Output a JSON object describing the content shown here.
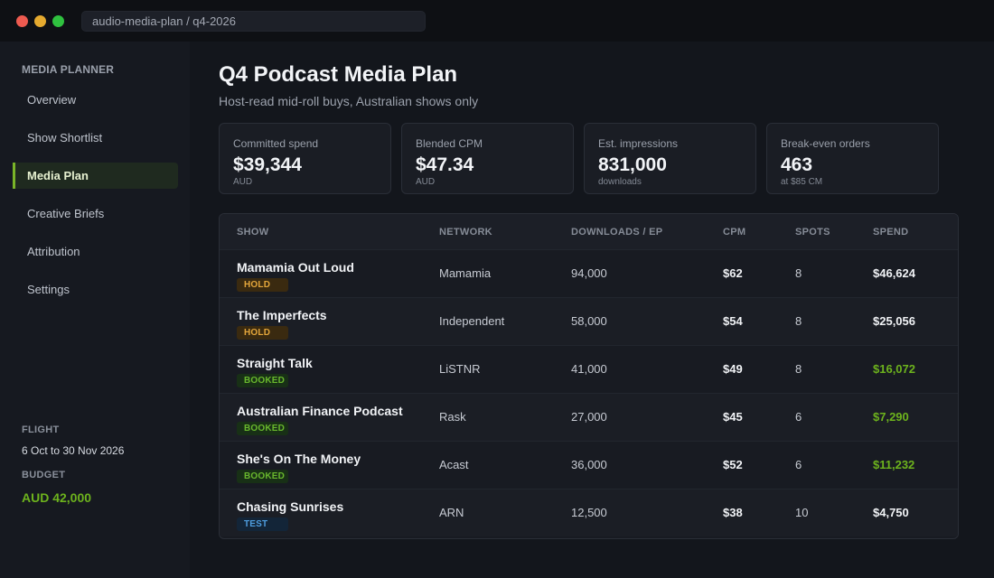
{
  "window": {
    "address": "audio-media-plan / q4-2026"
  },
  "sidebar": {
    "brand": "MEDIA PLANNER",
    "items": [
      {
        "label": "Overview",
        "active": false
      },
      {
        "label": "Show Shortlist",
        "active": false
      },
      {
        "label": "Media Plan",
        "active": true
      },
      {
        "label": "Creative Briefs",
        "active": false
      },
      {
        "label": "Attribution",
        "active": false
      },
      {
        "label": "Settings",
        "active": false
      }
    ],
    "flight_label": "FLIGHT",
    "flight_value": "6 Oct to 30 Nov 2026",
    "budget_label": "BUDGET",
    "budget_value": "AUD 42,000"
  },
  "header": {
    "title": "Q4 Podcast Media Plan",
    "subtitle": "Host-read mid-roll buys, Australian shows only"
  },
  "kpis": [
    {
      "label": "Committed spend",
      "value": "$39,344",
      "note": "AUD"
    },
    {
      "label": "Blended CPM",
      "value": "$47.34",
      "note": "AUD"
    },
    {
      "label": "Est. impressions",
      "value": "831,000",
      "note": "downloads"
    },
    {
      "label": "Break-even orders",
      "value": "463",
      "note": "at $85 CM"
    }
  ],
  "table": {
    "columns": [
      "SHOW",
      "NETWORK",
      "DOWNLOADS / EP",
      "CPM",
      "SPOTS",
      "SPEND"
    ],
    "rows": [
      {
        "show": "Mamamia Out Loud",
        "status": "HOLD",
        "status_type": "hold",
        "network": "Mamamia",
        "downloads": "94,000",
        "cpm": "$62",
        "spots": "8",
        "spend": "$46,624",
        "spend_booked": false
      },
      {
        "show": "The Imperfects",
        "status": "HOLD",
        "status_type": "hold",
        "network": "Independent",
        "downloads": "58,000",
        "cpm": "$54",
        "spots": "8",
        "spend": "$25,056",
        "spend_booked": false
      },
      {
        "show": "Straight Talk",
        "status": "BOOKED",
        "status_type": "booked",
        "network": "LiSTNR",
        "downloads": "41,000",
        "cpm": "$49",
        "spots": "8",
        "spend": "$16,072",
        "spend_booked": true
      },
      {
        "show": "Australian Finance Podcast",
        "status": "BOOKED",
        "status_type": "booked",
        "network": "Rask",
        "downloads": "27,000",
        "cpm": "$45",
        "spots": "6",
        "spend": "$7,290",
        "spend_booked": true
      },
      {
        "show": "She's On The Money",
        "status": "BOOKED",
        "status_type": "booked",
        "network": "Acast",
        "downloads": "36,000",
        "cpm": "$52",
        "spots": "6",
        "spend": "$11,232",
        "spend_booked": true
      },
      {
        "show": "Chasing Sunrises",
        "status": "TEST",
        "status_type": "test",
        "network": "ARN",
        "downloads": "12,500",
        "cpm": "$38",
        "spots": "10",
        "spend": "$4,750",
        "spend_booked": false
      }
    ]
  },
  "colors": {
    "accent_green": "#6db31d",
    "hold_amber": "#e3a63b",
    "test_blue": "#4f9ee0",
    "background": "#13161c"
  }
}
